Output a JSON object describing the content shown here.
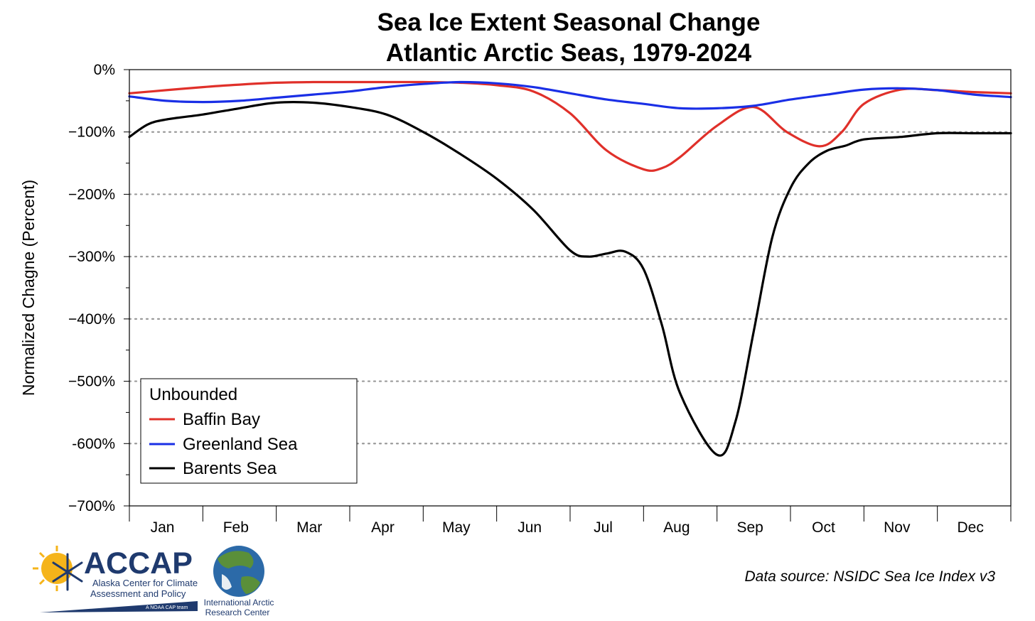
{
  "chart_data": {
    "type": "line",
    "title": "Sea Ice Extent Seasonal Change",
    "subtitle": "Atlantic Arctic Seas, 1979-2024",
    "ylabel": "Normalized Chagne (Percent)",
    "xlabel": "",
    "ylim": [
      -700,
      0
    ],
    "xlim": [
      0,
      12
    ],
    "yticks": [
      {
        "value": 0,
        "label": "0%"
      },
      {
        "value": -100,
        "label": "−100%"
      },
      {
        "value": -200,
        "label": "−200%"
      },
      {
        "value": -300,
        "label": "−300%"
      },
      {
        "value": -400,
        "label": "−400%"
      },
      {
        "value": -500,
        "label": "−500%"
      },
      {
        "value": -600,
        "label": "-600%"
      },
      {
        "value": -700,
        "label": "−700%"
      }
    ],
    "categories": [
      "Jan",
      "Feb",
      "Mar",
      "Apr",
      "May",
      "Jun",
      "Jul",
      "Aug",
      "Sep",
      "Oct",
      "Nov",
      "Dec"
    ],
    "grid": "horizontal dotted at -100 to -600",
    "legend": {
      "title": "Unbounded",
      "placement": "bottom-left"
    },
    "series": [
      {
        "name": "Baffin Bay",
        "color": "#e0302a",
        "x": [
          0,
          0.5,
          1,
          1.5,
          2,
          2.5,
          3,
          3.5,
          4,
          4.5,
          5,
          5.5,
          6,
          6.5,
          7,
          7.25,
          7.5,
          8,
          8.5,
          8.95,
          9.4,
          9.7,
          10,
          10.5,
          11,
          11.5,
          12
        ],
        "y": [
          -38,
          -33,
          -28,
          -24,
          -21,
          -20,
          -20,
          -20,
          -20,
          -21,
          -25,
          -35,
          -70,
          -130,
          -160,
          -158,
          -140,
          -90,
          -60,
          -100,
          -123,
          -100,
          -55,
          -32,
          -33,
          -36,
          -38
        ]
      },
      {
        "name": "Greenland Sea",
        "color": "#1a2fe6",
        "x": [
          0,
          0.5,
          1,
          1.5,
          2,
          2.5,
          3,
          3.5,
          4,
          4.5,
          5,
          5.5,
          6,
          6.5,
          7,
          7.5,
          8,
          8.5,
          9,
          9.5,
          10,
          10.5,
          11,
          11.5,
          12
        ],
        "y": [
          -43,
          -50,
          -52,
          -50,
          -45,
          -40,
          -35,
          -28,
          -23,
          -20,
          -22,
          -28,
          -38,
          -48,
          -55,
          -62,
          -62,
          -58,
          -48,
          -40,
          -32,
          -30,
          -33,
          -40,
          -44
        ]
      },
      {
        "name": "Barents Sea",
        "color": "#000000",
        "x": [
          0,
          0.25,
          0.5,
          1,
          1.5,
          2,
          2.5,
          3,
          3.5,
          4,
          4.5,
          5,
          5.5,
          6,
          6.25,
          6.5,
          6.75,
          7,
          7.25,
          7.5,
          8,
          8.25,
          8.5,
          8.75,
          9,
          9.25,
          9.5,
          9.75,
          10,
          10.5,
          11,
          11.5,
          12
        ],
        "y": [
          -108,
          -88,
          -80,
          -72,
          -62,
          -53,
          -53,
          -60,
          -72,
          -100,
          -135,
          -175,
          -225,
          -290,
          -300,
          -295,
          -292,
          -320,
          -410,
          -520,
          -618,
          -565,
          -420,
          -270,
          -190,
          -150,
          -130,
          -122,
          -112,
          -108,
          -102,
          -102,
          -102
        ]
      }
    ]
  },
  "footer": {
    "source": "Data source: NSIDC Sea Ice Index v3",
    "accap_name": "ACCAP",
    "accap_line1": "Alaska Center for Climate",
    "accap_line2": "Assessment and Policy",
    "accap_tag": "A NOAA CAP team",
    "iarc_line1": "International Arctic",
    "iarc_line2": "Research Center"
  }
}
